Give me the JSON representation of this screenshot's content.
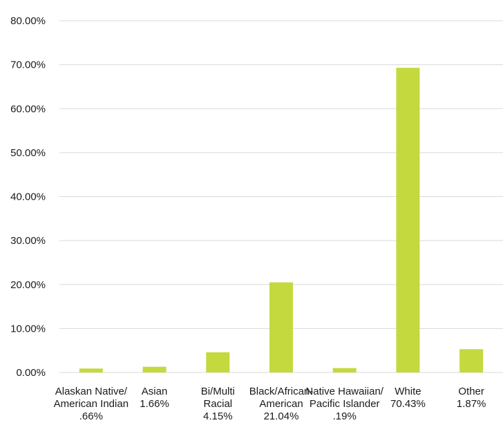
{
  "chart_data": {
    "type": "bar",
    "categories": [
      "Alaskan Native/ American Indian .66%",
      "Asian 1.66%",
      "Bi/Multi Racial 4.15%",
      "Black/African- American 21.04%",
      "Native Hawaiian/ Pacific Islander .19%",
      "White 70.43%",
      "Other 1.87%"
    ],
    "category_label_lines": [
      [
        "Alaskan Native/",
        "American Indian",
        ".66%"
      ],
      [
        "Asian",
        "1.66%"
      ],
      [
        "Bi/Multi",
        "Racial",
        "4.15%"
      ],
      [
        "Black/African-",
        "American",
        "21.04%"
      ],
      [
        "Native Hawaiian/",
        "Pacific Islander",
        ".19%"
      ],
      [
        "White",
        "70.43%"
      ],
      [
        "Other",
        "1.87%"
      ]
    ],
    "values": [
      0.9,
      1.3,
      4.6,
      20.5,
      1.0,
      69.3,
      5.3
    ],
    "yticks": [
      "0.00%",
      "10.00%",
      "20.00%",
      "30.00%",
      "40.00%",
      "50.00%",
      "60.00%",
      "70.00%",
      "80.00%"
    ],
    "ylim": [
      0,
      80
    ],
    "grid": true,
    "colors": {
      "bar": "#c4d93e",
      "grid": "#d9d9d9"
    },
    "title": "",
    "xlabel": "",
    "ylabel": ""
  }
}
